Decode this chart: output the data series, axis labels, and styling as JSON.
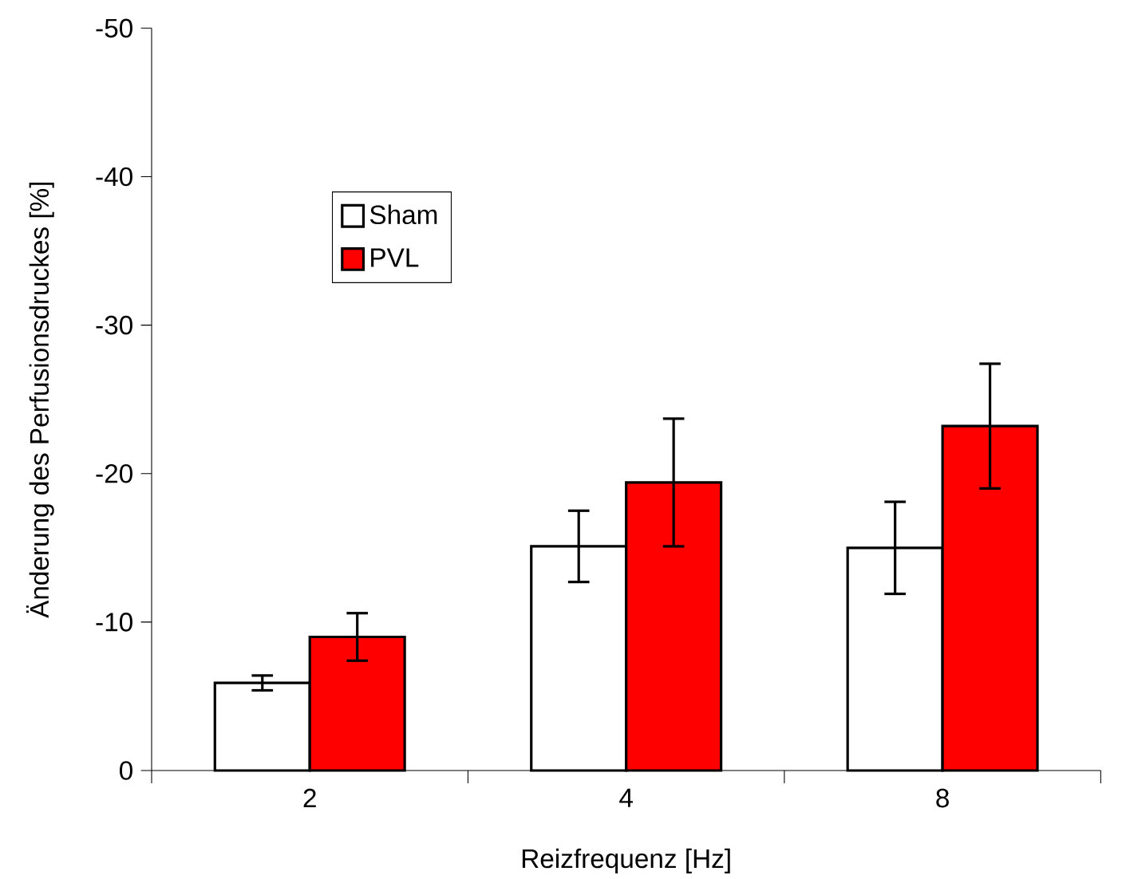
{
  "chart_data": {
    "type": "bar",
    "xlabel": "Reizfrequenz [Hz]",
    "ylabel": "Änderung des Perfusionsdruckes  [%]",
    "categories": [
      "2",
      "4",
      "8"
    ],
    "series": [
      {
        "name": "Sham",
        "color": "#ffffff",
        "values": [
          -5.9,
          -15.1,
          -15.0
        ],
        "errors": [
          0.5,
          2.4,
          3.1
        ]
      },
      {
        "name": "PVL",
        "color": "#ff0000",
        "values": [
          -9.0,
          -19.4,
          -23.2
        ],
        "errors": [
          1.6,
          4.3,
          4.2
        ]
      }
    ],
    "ylim": [
      0,
      -50
    ],
    "yticks": [
      0,
      -10,
      -20,
      -30,
      -40,
      -50
    ],
    "legend": "top left"
  }
}
